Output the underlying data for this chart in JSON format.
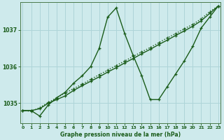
{
  "xlabel": "Graphe pression niveau de la mer (hPa)",
  "bg_color": "#ceeaec",
  "grid_color": "#aed4d8",
  "line_color": "#1a5c1a",
  "x_hours": [
    0,
    1,
    2,
    3,
    4,
    5,
    6,
    7,
    8,
    9,
    10,
    11,
    12,
    13,
    14,
    15,
    16,
    17,
    18,
    19,
    20,
    21,
    22,
    23
  ],
  "line_wavy": [
    1034.8,
    1034.8,
    1034.65,
    1034.95,
    1035.15,
    1035.3,
    1035.55,
    1035.75,
    1036.0,
    1036.5,
    1037.35,
    1037.6,
    1036.9,
    1036.3,
    1035.75,
    1035.1,
    1035.1,
    1035.45,
    1035.8,
    1036.15,
    1036.55,
    1037.05,
    1037.35,
    1037.65
  ],
  "line_solid": [
    1034.8,
    1034.8,
    1034.85,
    1035.0,
    1035.1,
    1035.2,
    1035.35,
    1035.48,
    1035.6,
    1035.72,
    1035.85,
    1035.97,
    1036.1,
    1036.22,
    1036.35,
    1036.47,
    1036.6,
    1036.72,
    1036.85,
    1036.97,
    1037.1,
    1037.25,
    1037.45,
    1037.65
  ],
  "line_dotted": [
    1034.8,
    1034.78,
    1034.88,
    1035.02,
    1035.15,
    1035.28,
    1035.4,
    1035.52,
    1035.65,
    1035.78,
    1035.9,
    1036.03,
    1036.15,
    1036.28,
    1036.4,
    1036.52,
    1036.65,
    1036.78,
    1036.9,
    1037.03,
    1037.15,
    1037.3,
    1037.5,
    1037.65
  ],
  "ylim": [
    1034.45,
    1037.75
  ],
  "yticks": [
    1035,
    1036,
    1037
  ],
  "xticks": [
    0,
    1,
    2,
    3,
    4,
    5,
    6,
    7,
    8,
    9,
    10,
    11,
    12,
    13,
    14,
    15,
    16,
    17,
    18,
    19,
    20,
    21,
    22,
    23
  ],
  "xticklabels": [
    "0",
    "1",
    "2",
    "3",
    "4",
    "5",
    "6",
    "7",
    "8",
    "9",
    "10",
    "11",
    "12",
    "13",
    "14",
    "15",
    "16",
    "17",
    "18",
    "19",
    "20",
    "21",
    "22",
    "23"
  ]
}
